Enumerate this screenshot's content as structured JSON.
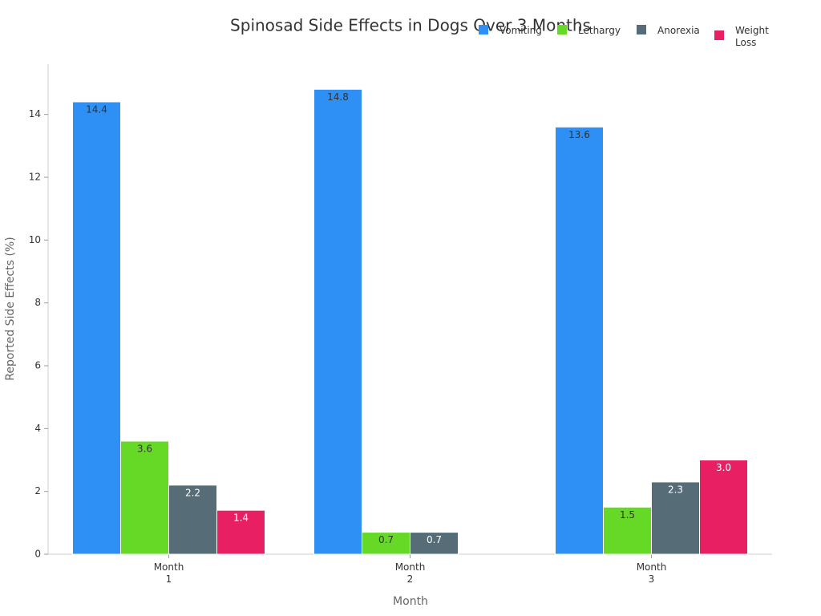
{
  "chart_data": {
    "type": "bar",
    "title": "Spinosad Side Effects in Dogs Over 3 Months",
    "x_label": "Month",
    "y_label": "Reported Side Effects (%)",
    "categories": [
      "Month 1",
      "Month 2",
      "Month 3"
    ],
    "series": [
      {
        "name": "Vomiting",
        "color": "#2e8ff5",
        "values": [
          14.4,
          14.8,
          13.6
        ]
      },
      {
        "name": "Lethargy",
        "color": "#66d926",
        "values": [
          3.6,
          0.7,
          1.5
        ]
      },
      {
        "name": "Anorexia",
        "color": "#566d78",
        "values": [
          2.2,
          0.7,
          2.3
        ]
      },
      {
        "name": "Weight Loss",
        "color": "#e82063",
        "values": [
          1.4,
          null,
          3.0
        ],
        "value_labels": [
          "1.4",
          null,
          "3.0"
        ]
      }
    ],
    "ylim": [
      0,
      15.6
    ],
    "yticks": [
      0,
      2,
      4,
      6,
      8,
      10,
      12,
      14
    ]
  }
}
